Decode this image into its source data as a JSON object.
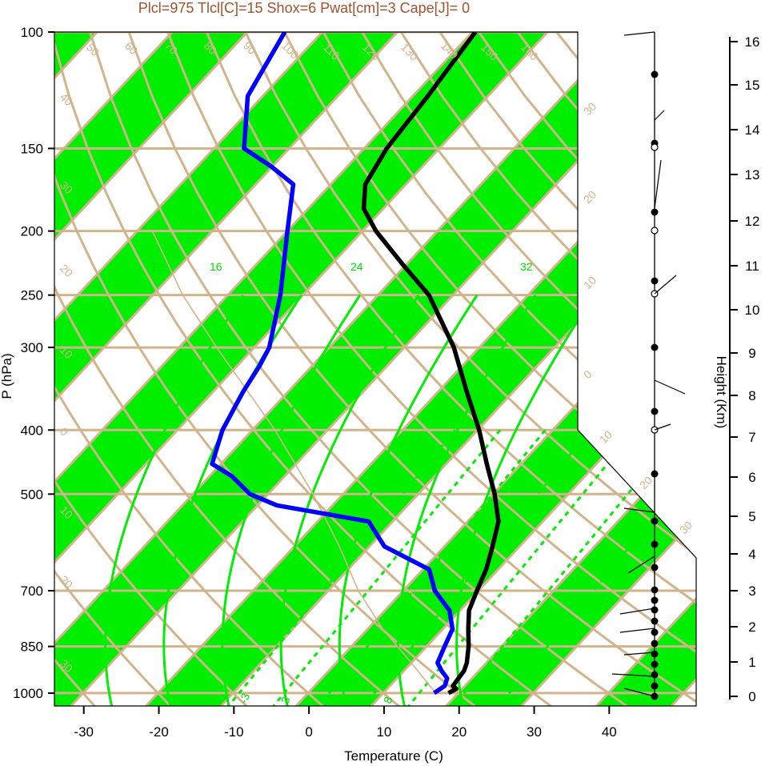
{
  "title": "Plcl=975 Tlcl[C]=15 Shox=6 Pwat[cm]=3 Cape[J]= 0",
  "colors": {
    "band": "#00ee00",
    "grid": "#d2b48c",
    "title": "#a0522d",
    "temperature": "#000000",
    "dewpoint": "#0000ff",
    "mixing": "#00ee00"
  },
  "chart_data": {
    "type": "line",
    "title": "Plcl=975 Tlcl[C]=15 Shox=6 Pwat[cm]=3 Cape[J]= 0",
    "xlabel": "Temperature (C)",
    "ylabel": "P (hPa)",
    "y2label": "Height (Km)",
    "xlim": [
      -33,
      36
    ],
    "ylim": [
      1050,
      100
    ],
    "y_scale": "skew-log",
    "x_ticks": [
      "-30",
      "-20",
      "-10",
      "0",
      "10",
      "20",
      "30",
      "40"
    ],
    "x_tick_values": [
      -30,
      -20,
      -10,
      0,
      10,
      20,
      30,
      40
    ],
    "y_ticks": [
      "100",
      "150",
      "200",
      "250",
      "300",
      "400",
      "500",
      "700",
      "850",
      "1000"
    ],
    "y_tick_values": [
      100,
      150,
      200,
      250,
      300,
      400,
      500,
      700,
      850,
      1000
    ],
    "height_ticks": [
      "0",
      "1",
      "2",
      "3",
      "4",
      "5",
      "6",
      "7",
      "8",
      "9",
      "10",
      "11",
      "12",
      "13",
      "14",
      "15",
      "16"
    ],
    "isotherm_labels": [
      {
        "t": 50,
        "text": "50"
      },
      {
        "t": 60,
        "text": "60"
      },
      {
        "t": 70,
        "text": "70"
      },
      {
        "t": 80,
        "text": "80"
      },
      {
        "t": 90,
        "text": "90"
      },
      {
        "t": 100,
        "text": "100"
      },
      {
        "t": 110,
        "text": "110"
      },
      {
        "t": 120,
        "text": "120"
      },
      {
        "t": 130,
        "text": "130"
      },
      {
        "t": 140,
        "text": "140"
      },
      {
        "t": 150,
        "text": "150"
      },
      {
        "t": 160,
        "text": "160"
      }
    ],
    "adiabat_labels": [
      "30",
      "20",
      "10",
      "0",
      "10",
      "20",
      "30"
    ],
    "left_labels": [
      "40",
      "30",
      "20",
      "10",
      "0",
      "10",
      "20",
      "30"
    ],
    "mixing_labels": [
      "12",
      "16",
      "24",
      "32"
    ],
    "dashed_labels": [
      "-3",
      "3",
      "8"
    ],
    "series": [
      {
        "name": "temperature",
        "p": [
          1000,
          985,
          975,
          950,
          925,
          900,
          850,
          800,
          750,
          700,
          650,
          600,
          550,
          500,
          450,
          400,
          350,
          300,
          250,
          225,
          200,
          185,
          170,
          150,
          125,
          100
        ],
        "t": [
          18.7,
          19.2,
          18.4,
          18.2,
          18.0,
          17.4,
          15.6,
          13.4,
          11.2,
          9.8,
          8.4,
          6.4,
          4.1,
          0.2,
          -4.6,
          -9.8,
          -16.2,
          -23.4,
          -33.2,
          -40.4,
          -48.2,
          -52.6,
          -55.4,
          -57.0,
          -58.0,
          -59.6
        ]
      },
      {
        "name": "dewpoint",
        "p": [
          1000,
          975,
          950,
          925,
          900,
          850,
          800,
          750,
          700,
          650,
          600,
          550,
          520,
          500,
          470,
          450,
          400,
          350,
          320,
          300,
          250,
          200,
          170,
          160,
          150,
          125,
          100
        ],
        "td": [
          16.8,
          17.3,
          16.7,
          15.0,
          13.5,
          12.4,
          11.3,
          8.6,
          4.2,
          0.8,
          -8.0,
          -13.2,
          -27.4,
          -32.4,
          -37.0,
          -41.2,
          -44.0,
          -46.0,
          -47.0,
          -48.0,
          -53.0,
          -60.0,
          -65.0,
          -70.0,
          -76.0,
          -82.0,
          -85.0
        ]
      }
    ]
  }
}
